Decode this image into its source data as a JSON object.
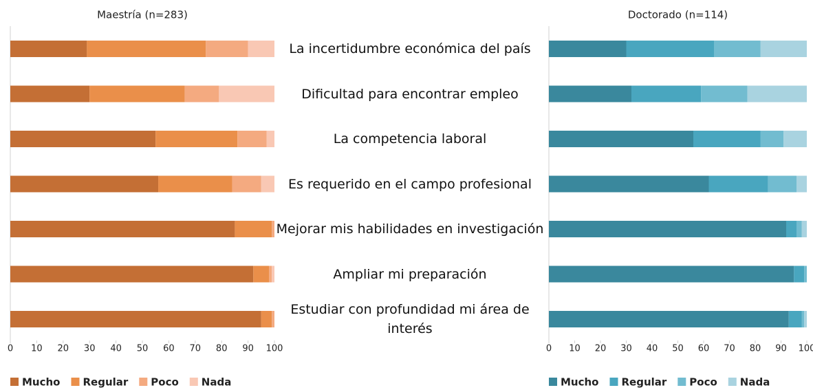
{
  "chart_data": [
    {
      "type": "stacked-barh",
      "title": "Maestría (n=283)",
      "categories": [
        "La incertidumbre económica del país",
        "Dificultad para encontrar empleo",
        "La competencia laboral",
        "Es requerido en el campo profesional",
        "Mejorar mis habilidades en investigación",
        "Ampliar mi preparación",
        "Estudiar con profundidad mi área de interés"
      ],
      "series": [
        {
          "name": "Mucho",
          "color": "#c46f35",
          "values": [
            29,
            30,
            55,
            56,
            85,
            92,
            95
          ]
        },
        {
          "name": "Regular",
          "color": "#ea8f4a",
          "values": [
            45,
            36,
            31,
            28,
            14,
            6,
            4
          ]
        },
        {
          "name": "Poco",
          "color": "#f4aa80",
          "values": [
            16,
            13,
            11,
            11,
            1,
            1,
            1
          ]
        },
        {
          "name": "Nada",
          "color": "#f9c8b4",
          "values": [
            10,
            21,
            3,
            5,
            0,
            1,
            0
          ]
        }
      ],
      "xlim": [
        0,
        100
      ],
      "xticks": [
        0,
        10,
        20,
        30,
        40,
        50,
        60,
        70,
        80,
        90,
        100
      ]
    },
    {
      "type": "stacked-barh",
      "title": "Doctorado (n=114)",
      "series": [
        {
          "name": "Mucho",
          "color": "#3a889d",
          "values": [
            30,
            32,
            56,
            62,
            92,
            95,
            93
          ]
        },
        {
          "name": "Regular",
          "color": "#49a6bf",
          "values": [
            34,
            27,
            26,
            23,
            4,
            4,
            5
          ]
        },
        {
          "name": "Poco",
          "color": "#72bcd0",
          "values": [
            18,
            18,
            9,
            11,
            2,
            1,
            1
          ]
        },
        {
          "name": "Nada",
          "color": "#a9d3e0",
          "values": [
            18,
            23,
            9,
            4,
            2,
            0,
            1
          ]
        }
      ],
      "xlim": [
        0,
        100
      ],
      "xticks": [
        0,
        10,
        20,
        30,
        40,
        50,
        60,
        70,
        80,
        90,
        100
      ]
    }
  ]
}
